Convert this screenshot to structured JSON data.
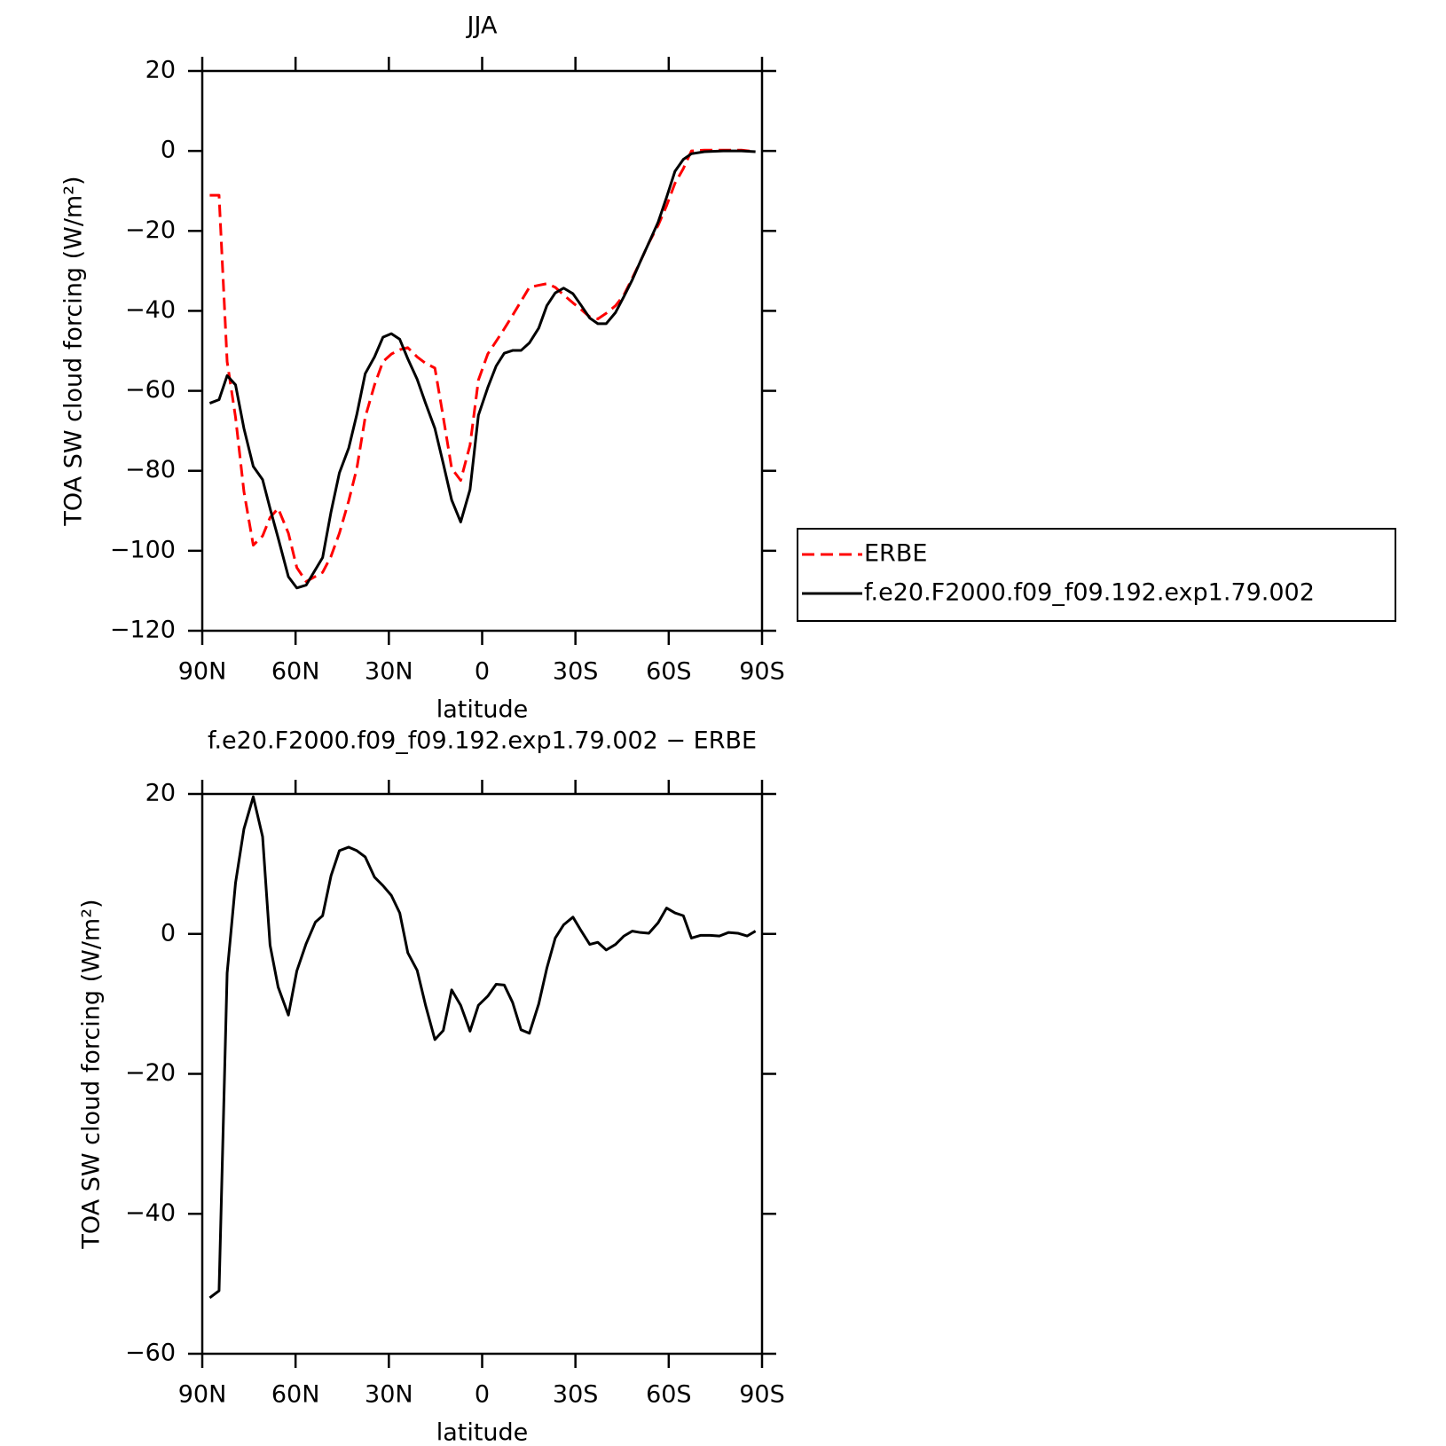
{
  "chart_data": [
    {
      "type": "line",
      "title": "JJA",
      "x_label": "latitude",
      "y_label": "TOA SW cloud forcing (W/m²)",
      "xlim": [
        90,
        -90
      ],
      "xticks": [
        {
          "value": 90,
          "label": "90N"
        },
        {
          "value": 60,
          "label": "60N"
        },
        {
          "value": 30,
          "label": "30N"
        },
        0,
        {
          "value": -30,
          "label": "30S"
        },
        {
          "value": -60,
          "label": "60S"
        },
        {
          "value": -90,
          "label": "90S"
        }
      ],
      "ylim": [
        -120,
        20
      ],
      "yticks": [
        20,
        0,
        {
          "value": -20,
          "label": "−20"
        },
        {
          "value": -40,
          "label": "−40"
        },
        {
          "value": -60,
          "label": "−60"
        },
        {
          "value": -80,
          "label": "−80"
        },
        {
          "value": -100,
          "label": "−100"
        },
        {
          "value": -120,
          "label": "−120"
        }
      ],
      "legend": "right",
      "x": [
        87.6,
        84.6,
        82.0,
        79.3,
        76.6,
        73.6,
        70.6,
        68.2,
        65.6,
        62.3,
        59.6,
        56.6,
        51.3,
        48.6,
        45.9,
        42.9,
        40.3,
        37.6,
        34.6,
        31.9,
        29.2,
        26.5,
        23.9,
        20.9,
        18.2,
        15.2,
        12.5,
        9.8,
        6.9,
        3.9,
        1.2,
        -1.8,
        -4.5,
        -7.1,
        -9.8,
        -12.5,
        -15.2,
        -18.2,
        -20.8,
        -23.5,
        -26.2,
        -29.2,
        -31.9,
        -34.6,
        -37.2,
        -39.9,
        -42.9,
        -45.6,
        -48.3,
        -50.9,
        -53.6,
        -56.6,
        -59.3,
        -62.0,
        -64.7,
        -67.3,
        -71.5,
        -77.5,
        -83.4,
        -87.9
      ],
      "series": [
        {
          "name": "ERBE",
          "color": "#ff0000",
          "linestyle": "dashed",
          "values": [
            -11.1,
            -11.1,
            -52.7,
            -66.6,
            -85.2,
            -98.6,
            -96.3,
            -91.7,
            -89.4,
            -95.6,
            -104.2,
            -107.7,
            -105.4,
            -101.4,
            -95.6,
            -87.5,
            -79.4,
            -66.6,
            -58.5,
            -52.7,
            -50.8,
            -49.7,
            -49.2,
            -51.5,
            -53.1,
            -54.3,
            -66.6,
            -79.4,
            -82.4,
            -73.6,
            -57.3,
            -50.8,
            -47.6,
            -44.5,
            -41.1,
            -37.6,
            -34.1,
            -33.6,
            -33.2,
            -34.1,
            -36,
            -38,
            -39.7,
            -41.5,
            -42,
            -40.6,
            -38.7,
            -36,
            -31.8,
            -27.6,
            -23,
            -18.6,
            -13.7,
            -8.1,
            -4.4,
            0,
            0.2,
            0.2,
            0.2,
            -0.2
          ]
        },
        {
          "name": "f.e20.F2000.f09_f09.192.exp1.79.002",
          "color": "#000000",
          "linestyle": "solid",
          "values": [
            -63.1,
            -62.2,
            -56.2,
            -58.5,
            -69.4,
            -78.9,
            -82.2,
            -89.4,
            -96.8,
            -106.5,
            -109.3,
            -108.6,
            -101.7,
            -90.3,
            -80.5,
            -74.3,
            -65.9,
            -55.7,
            -51.5,
            -46.6,
            -45.7,
            -47.1,
            -52,
            -57.1,
            -63.1,
            -69.4,
            -78.2,
            -87.3,
            -92.8,
            -84.7,
            -66.1,
            -59.2,
            -53.8,
            -50.6,
            -49.9,
            -49.9,
            -48,
            -44.3,
            -38.7,
            -35.5,
            -34.3,
            -35.7,
            -38.7,
            -41.8,
            -43.2,
            -43.2,
            -40.4,
            -36.4,
            -32.2,
            -27.6,
            -23,
            -17.8,
            -11.6,
            -5.1,
            -2.1,
            -0.7,
            -0.2,
            0,
            0,
            -0.2
          ]
        }
      ]
    },
    {
      "type": "line",
      "title": "f.e20.F2000.f09_f09.192.exp1.79.002 − ERBE",
      "x_label": "latitude",
      "y_label": "TOA SW cloud forcing (W/m²)",
      "xlim": [
        90,
        -90
      ],
      "xticks": [
        {
          "value": 90,
          "label": "90N"
        },
        {
          "value": 60,
          "label": "60N"
        },
        {
          "value": 30,
          "label": "30N"
        },
        0,
        {
          "value": -30,
          "label": "30S"
        },
        {
          "value": -60,
          "label": "60S"
        },
        {
          "value": -90,
          "label": "90S"
        }
      ],
      "ylim": [
        -60,
        20
      ],
      "yticks": [
        20,
        0,
        {
          "value": -20,
          "label": "−20"
        },
        {
          "value": -40,
          "label": "−40"
        },
        {
          "value": -60,
          "label": "−60"
        }
      ],
      "x": [
        87.6,
        84.6,
        82.0,
        79.3,
        76.6,
        73.6,
        70.6,
        68.2,
        65.6,
        62.3,
        59.6,
        56.6,
        53.6,
        51.3,
        48.6,
        45.9,
        42.9,
        40.3,
        37.6,
        34.6,
        31.9,
        29.2,
        26.5,
        23.9,
        20.9,
        18.2,
        15.2,
        12.5,
        9.8,
        6.9,
        3.9,
        1.2,
        -1.8,
        -4.5,
        -7.1,
        -9.8,
        -12.5,
        -15.2,
        -18.2,
        -20.8,
        -23.5,
        -26.2,
        -29.2,
        -31.9,
        -34.6,
        -37.2,
        -39.9,
        -42.9,
        -45.6,
        -48.3,
        -50.9,
        -53.6,
        -56.6,
        -59.3,
        -62.0,
        -64.7,
        -67.3,
        -70.3,
        -73.3,
        -76.3,
        -79.2,
        -82.2,
        -85.2,
        -87.9
      ],
      "series": [
        {
          "color": "#000000",
          "linestyle": "solid",
          "values": [
            -52,
            -51,
            -5.6,
            7.3,
            15,
            19.6,
            13.9,
            -1.6,
            -7.6,
            -11.6,
            -5.3,
            -1.4,
            1.7,
            2.6,
            8.3,
            11.9,
            12.4,
            11.9,
            11,
            8.1,
            6.9,
            5.5,
            3,
            -2.7,
            -5.2,
            -10.2,
            -15.1,
            -13.8,
            -8,
            -10.2,
            -13.9,
            -10.2,
            -8.9,
            -7.2,
            -7.3,
            -9.8,
            -13.7,
            -14.2,
            -10,
            -4.9,
            -0.6,
            1.3,
            2.4,
            0.4,
            -1.5,
            -1.2,
            -2.3,
            -1.5,
            -0.3,
            0.4,
            0.2,
            0.1,
            1.6,
            3.7,
            3,
            2.6,
            -0.6,
            -0.2,
            -0.2,
            -0.3,
            0.2,
            0.1,
            -0.3,
            0.4
          ]
        }
      ]
    }
  ]
}
